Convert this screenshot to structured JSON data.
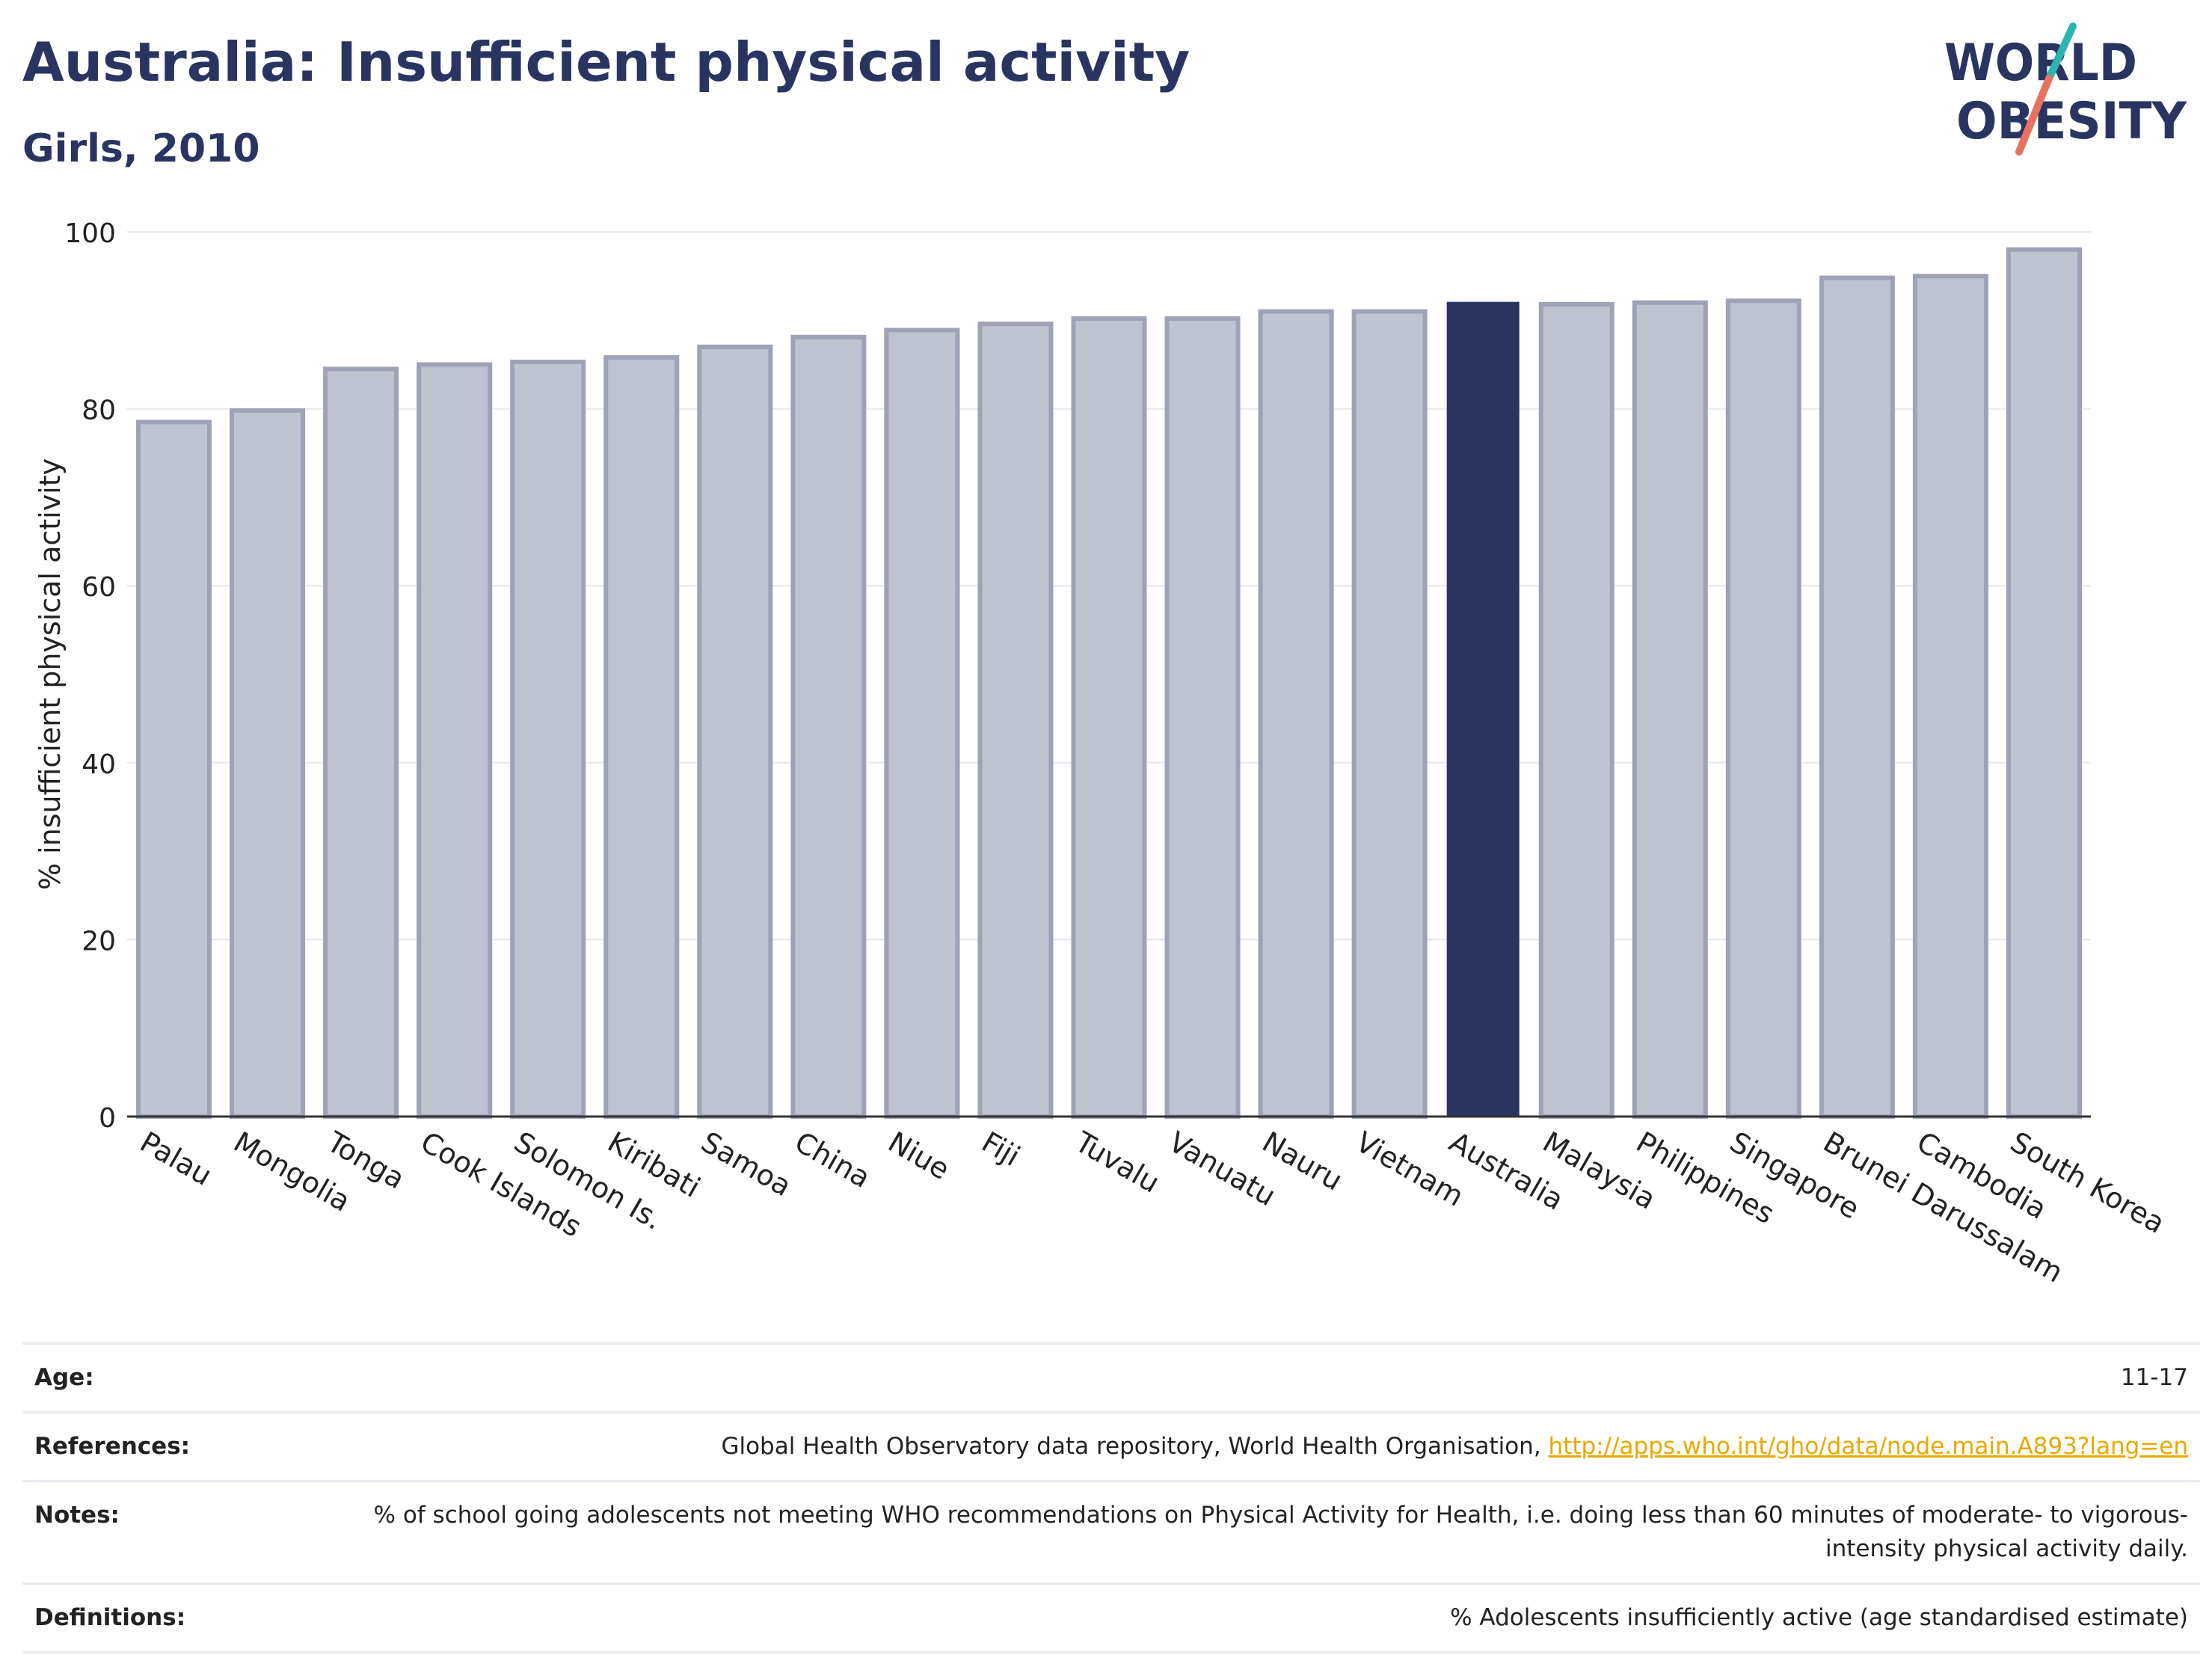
{
  "title": "Australia: Insufficient physical activity",
  "subtitle": "Girls, 2010",
  "logo": {
    "line1": "WORLD",
    "line2": "OBESITY"
  },
  "chart_data": {
    "type": "bar",
    "ylabel": "% insufficient physical activity",
    "xlabel": "",
    "ylim": [
      0,
      100
    ],
    "yticks": [
      0,
      20,
      40,
      60,
      80,
      100
    ],
    "grid": true,
    "categories": [
      "Palau",
      "Mongolia",
      "Tonga",
      "Cook Islands",
      "Solomon Is.",
      "Kiribati",
      "Samoa",
      "China",
      "Niue",
      "Fiji",
      "Tuvalu",
      "Vanuatu",
      "Nauru",
      "Vietnam",
      "Australia",
      "Malaysia",
      "Philippines",
      "Singapore",
      "Brunei Darussalam",
      "Cambodia",
      "South Korea"
    ],
    "values": [
      78.5,
      79.8,
      84.5,
      85.0,
      85.3,
      85.8,
      87.0,
      88.1,
      88.9,
      89.6,
      90.2,
      90.2,
      91.0,
      91.0,
      92.0,
      91.8,
      92.0,
      92.2,
      94.8,
      95.0,
      98.0
    ],
    "highlight": "Australia",
    "colors": {
      "highlight": "#2a3461",
      "bar_fill": "#bfc2cf",
      "bar_stroke": "#9ea2b8"
    }
  },
  "info": [
    {
      "label": "Age:",
      "value": "11-17"
    },
    {
      "label": "References:",
      "value": "Global Health Observatory data repository, World Health Organisation, ",
      "link": "http://apps.who.int/gho/data/node.main.A893?lang=en"
    },
    {
      "label": "Notes:",
      "value": "% of school going adolescents not meeting WHO recommendations on Physical Activity for Health, i.e. doing less than 60 minutes of moderate- to vigorous-intensity physical activity daily."
    },
    {
      "label": "Definitions:",
      "value": "% Adolescents insufficiently active (age standardised estimate)"
    }
  ]
}
